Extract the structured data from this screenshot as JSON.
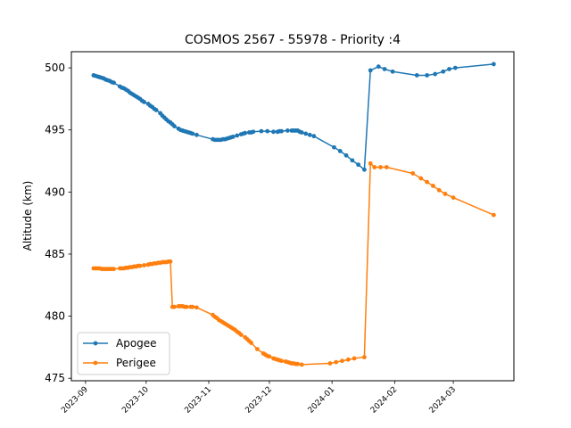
{
  "chart_data": {
    "type": "line",
    "title": "COSMOS 2567 - 55978 - Priority :4",
    "xlabel": "",
    "ylabel": "Altitude (km)",
    "xlim": [
      "2023-08-25",
      "2024-03-31"
    ],
    "ylim": [
      474.8,
      501.3
    ],
    "x_ticks": [
      "2023-09",
      "2023-10",
      "2023-11",
      "2023-12",
      "2024-01",
      "2024-02",
      "2024-03"
    ],
    "y_ticks": [
      475,
      480,
      485,
      490,
      495,
      500
    ],
    "grid": false,
    "legend": "lower-left",
    "series": [
      {
        "name": "Apogee",
        "color": "#1f77b4",
        "points": [
          [
            "2023-09-05",
            499.4
          ],
          [
            "2023-09-06",
            499.35
          ],
          [
            "2023-09-07",
            499.3
          ],
          [
            "2023-09-08",
            499.25
          ],
          [
            "2023-09-09",
            499.2
          ],
          [
            "2023-09-10",
            499.15
          ],
          [
            "2023-09-11",
            499.05
          ],
          [
            "2023-09-12",
            499.0
          ],
          [
            "2023-09-13",
            498.95
          ],
          [
            "2023-09-14",
            498.85
          ],
          [
            "2023-09-15",
            498.8
          ],
          [
            "2023-09-18",
            498.5
          ],
          [
            "2023-09-19",
            498.4
          ],
          [
            "2023-09-20",
            498.35
          ],
          [
            "2023-09-21",
            498.25
          ],
          [
            "2023-09-22",
            498.15
          ],
          [
            "2023-09-23",
            498.0
          ],
          [
            "2023-09-24",
            497.9
          ],
          [
            "2023-09-25",
            497.8
          ],
          [
            "2023-09-26",
            497.7
          ],
          [
            "2023-09-27",
            497.6
          ],
          [
            "2023-09-28",
            497.5
          ],
          [
            "2023-09-29",
            497.35
          ],
          [
            "2023-09-30",
            497.25
          ],
          [
            "2023-10-02",
            497.1
          ],
          [
            "2023-10-03",
            496.95
          ],
          [
            "2023-10-04",
            496.85
          ],
          [
            "2023-10-05",
            496.7
          ],
          [
            "2023-10-06",
            496.6
          ],
          [
            "2023-10-08",
            496.35
          ],
          [
            "2023-10-09",
            496.15
          ],
          [
            "2023-10-10",
            496.0
          ],
          [
            "2023-10-11",
            495.85
          ],
          [
            "2023-10-12",
            495.7
          ],
          [
            "2023-10-13",
            495.6
          ],
          [
            "2023-10-14",
            495.45
          ],
          [
            "2023-10-15",
            495.3
          ],
          [
            "2023-10-17",
            495.1
          ],
          [
            "2023-10-18",
            495.0
          ],
          [
            "2023-10-19",
            494.95
          ],
          [
            "2023-10-20",
            494.9
          ],
          [
            "2023-10-21",
            494.85
          ],
          [
            "2023-10-22",
            494.8
          ],
          [
            "2023-10-23",
            494.75
          ],
          [
            "2023-10-24",
            494.7
          ],
          [
            "2023-10-26",
            494.6
          ],
          [
            "2023-11-03",
            494.25
          ],
          [
            "2023-11-04",
            494.2
          ],
          [
            "2023-11-05",
            494.2
          ],
          [
            "2023-11-06",
            494.2
          ],
          [
            "2023-11-07",
            494.2
          ],
          [
            "2023-11-08",
            494.25
          ],
          [
            "2023-11-09",
            494.25
          ],
          [
            "2023-11-10",
            494.3
          ],
          [
            "2023-11-11",
            494.35
          ],
          [
            "2023-11-12",
            494.4
          ],
          [
            "2023-11-13",
            494.45
          ],
          [
            "2023-11-15",
            494.55
          ],
          [
            "2023-11-17",
            494.65
          ],
          [
            "2023-11-18",
            494.7
          ],
          [
            "2023-11-19",
            494.75
          ],
          [
            "2023-11-21",
            494.8
          ],
          [
            "2023-11-22",
            494.8
          ],
          [
            "2023-11-23",
            494.85
          ],
          [
            "2023-11-27",
            494.9
          ],
          [
            "2023-11-30",
            494.9
          ],
          [
            "2023-12-03",
            494.85
          ],
          [
            "2023-12-05",
            494.85
          ],
          [
            "2023-12-06",
            494.9
          ],
          [
            "2023-12-07",
            494.9
          ],
          [
            "2023-12-10",
            494.95
          ],
          [
            "2023-12-12",
            494.95
          ],
          [
            "2023-12-13",
            494.95
          ],
          [
            "2023-12-14",
            494.95
          ],
          [
            "2023-12-15",
            494.95
          ],
          [
            "2023-12-16",
            494.85
          ],
          [
            "2023-12-17",
            494.8
          ],
          [
            "2023-12-19",
            494.7
          ],
          [
            "2023-12-21",
            494.6
          ],
          [
            "2023-12-23",
            494.5
          ],
          [
            "2024-01-02",
            493.6
          ],
          [
            "2024-01-05",
            493.3
          ],
          [
            "2024-01-08",
            492.95
          ],
          [
            "2024-01-11",
            492.55
          ],
          [
            "2024-01-14",
            492.2
          ],
          [
            "2024-01-17",
            491.8
          ],
          [
            "2024-01-20",
            499.8
          ],
          [
            "2024-01-24",
            500.1
          ],
          [
            "2024-01-27",
            499.9
          ],
          [
            "2024-01-31",
            499.7
          ],
          [
            "2024-02-12",
            499.4
          ],
          [
            "2024-02-17",
            499.4
          ],
          [
            "2024-02-21",
            499.5
          ],
          [
            "2024-02-25",
            499.7
          ],
          [
            "2024-02-28",
            499.9
          ],
          [
            "2024-03-02",
            500.0
          ],
          [
            "2024-03-21",
            500.3
          ]
        ]
      },
      {
        "name": "Perigee",
        "color": "#ff7f0e",
        "points": [
          [
            "2023-09-05",
            483.85
          ],
          [
            "2023-09-06",
            483.85
          ],
          [
            "2023-09-07",
            483.85
          ],
          [
            "2023-09-08",
            483.85
          ],
          [
            "2023-09-09",
            483.8
          ],
          [
            "2023-09-10",
            483.8
          ],
          [
            "2023-09-11",
            483.8
          ],
          [
            "2023-09-12",
            483.8
          ],
          [
            "2023-09-13",
            483.8
          ],
          [
            "2023-09-14",
            483.8
          ],
          [
            "2023-09-15",
            483.8
          ],
          [
            "2023-09-18",
            483.85
          ],
          [
            "2023-09-19",
            483.85
          ],
          [
            "2023-09-20",
            483.85
          ],
          [
            "2023-09-21",
            483.9
          ],
          [
            "2023-09-22",
            483.9
          ],
          [
            "2023-09-23",
            483.95
          ],
          [
            "2023-09-24",
            483.95
          ],
          [
            "2023-09-25",
            484.0
          ],
          [
            "2023-09-26",
            484.0
          ],
          [
            "2023-09-27",
            484.05
          ],
          [
            "2023-09-28",
            484.05
          ],
          [
            "2023-09-30",
            484.1
          ],
          [
            "2023-10-02",
            484.15
          ],
          [
            "2023-10-03",
            484.2
          ],
          [
            "2023-10-04",
            484.2
          ],
          [
            "2023-10-05",
            484.25
          ],
          [
            "2023-10-06",
            484.25
          ],
          [
            "2023-10-07",
            484.3
          ],
          [
            "2023-10-08",
            484.3
          ],
          [
            "2023-10-09",
            484.35
          ],
          [
            "2023-10-10",
            484.35
          ],
          [
            "2023-10-11",
            484.35
          ],
          [
            "2023-10-12",
            484.4
          ],
          [
            "2023-10-13",
            484.4
          ],
          [
            "2023-10-14",
            480.75
          ],
          [
            "2023-10-15",
            480.75
          ],
          [
            "2023-10-17",
            480.8
          ],
          [
            "2023-10-18",
            480.8
          ],
          [
            "2023-10-19",
            480.8
          ],
          [
            "2023-10-20",
            480.75
          ],
          [
            "2023-10-21",
            480.75
          ],
          [
            "2023-10-23",
            480.75
          ],
          [
            "2023-10-24",
            480.75
          ],
          [
            "2023-10-26",
            480.7
          ],
          [
            "2023-11-03",
            480.1
          ],
          [
            "2023-11-04",
            479.95
          ],
          [
            "2023-11-05",
            479.85
          ],
          [
            "2023-11-06",
            479.7
          ],
          [
            "2023-11-07",
            479.6
          ],
          [
            "2023-11-08",
            479.5
          ],
          [
            "2023-11-09",
            479.4
          ],
          [
            "2023-11-10",
            479.3
          ],
          [
            "2023-11-11",
            479.2
          ],
          [
            "2023-11-12",
            479.1
          ],
          [
            "2023-11-13",
            479.0
          ],
          [
            "2023-11-14",
            478.9
          ],
          [
            "2023-11-15",
            478.75
          ],
          [
            "2023-11-16",
            478.65
          ],
          [
            "2023-11-17",
            478.5
          ],
          [
            "2023-11-19",
            478.3
          ],
          [
            "2023-11-20",
            478.15
          ],
          [
            "2023-11-21",
            478.0
          ],
          [
            "2023-11-22",
            477.85
          ],
          [
            "2023-11-25",
            477.35
          ],
          [
            "2023-11-28",
            477.0
          ],
          [
            "2023-11-29",
            476.9
          ],
          [
            "2023-11-30",
            476.8
          ],
          [
            "2023-12-01",
            476.75
          ],
          [
            "2023-12-03",
            476.6
          ],
          [
            "2023-12-04",
            476.55
          ],
          [
            "2023-12-05",
            476.5
          ],
          [
            "2023-12-06",
            476.45
          ],
          [
            "2023-12-07",
            476.4
          ],
          [
            "2023-12-09",
            476.35
          ],
          [
            "2023-12-10",
            476.3
          ],
          [
            "2023-12-11",
            476.25
          ],
          [
            "2023-12-12",
            476.2
          ],
          [
            "2023-12-13",
            476.2
          ],
          [
            "2023-12-14",
            476.15
          ],
          [
            "2023-12-15",
            476.15
          ],
          [
            "2023-12-17",
            476.1
          ],
          [
            "2023-12-31",
            476.2
          ],
          [
            "2024-01-03",
            476.3
          ],
          [
            "2024-01-06",
            476.4
          ],
          [
            "2024-01-09",
            476.5
          ],
          [
            "2024-01-12",
            476.6
          ],
          [
            "2024-01-17",
            476.7
          ],
          [
            "2024-01-20",
            492.3
          ],
          [
            "2024-01-22",
            492.0
          ],
          [
            "2024-01-25",
            492.0
          ],
          [
            "2024-01-28",
            492.0
          ],
          [
            "2024-02-10",
            491.5
          ],
          [
            "2024-02-14",
            491.1
          ],
          [
            "2024-02-17",
            490.8
          ],
          [
            "2024-02-20",
            490.5
          ],
          [
            "2024-02-23",
            490.15
          ],
          [
            "2024-02-26",
            489.85
          ],
          [
            "2024-03-01",
            489.55
          ],
          [
            "2024-03-21",
            488.15
          ]
        ]
      }
    ]
  }
}
